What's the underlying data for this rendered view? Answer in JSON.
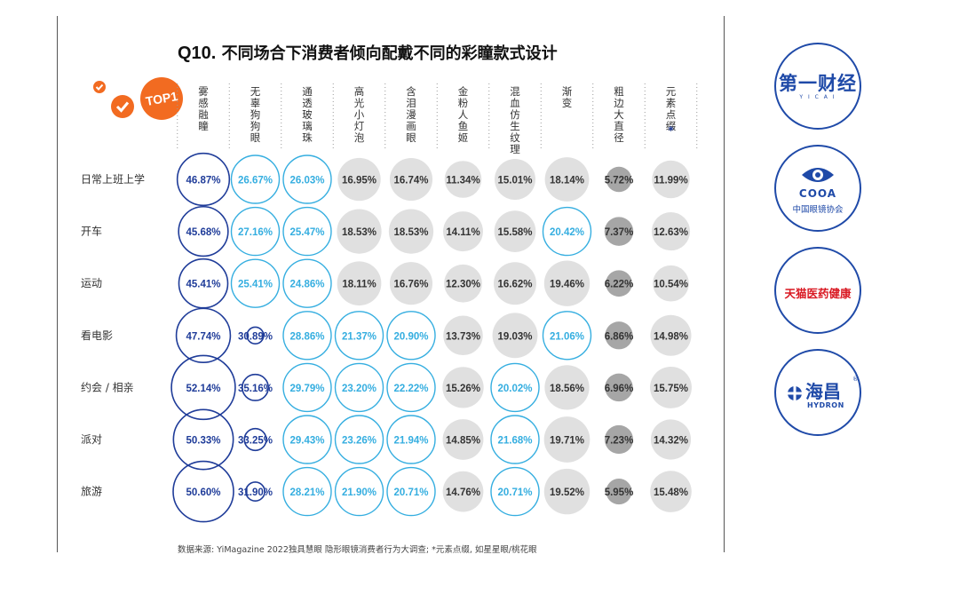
{
  "title": {
    "prefix": "Q10.",
    "text": "不同场合下消费者倾向配戴不同的彩瞳款式设计"
  },
  "badge": {
    "label": "TOP1"
  },
  "footer": {
    "text": "数据来源: YiMagazine 2022独具慧眼 隐形眼镜消费者行为大调查; *元素点缀, 如星星眼/桃花眼"
  },
  "logos": [
    {
      "name": "yicai",
      "main": "第一财经",
      "sub": "Y I C A I"
    },
    {
      "name": "cooa",
      "main": "COOA",
      "sub": "中国眼镜协会"
    },
    {
      "name": "tmall",
      "main": "天猫医药健康"
    },
    {
      "name": "hydron",
      "main": "海昌",
      "sub": "HYDRON",
      "mark": "®"
    }
  ],
  "colors": {
    "dark_blue": "#1f3c99",
    "light_blue": "#35aee0",
    "light_gray": "#e0e0e0",
    "dark_gray": "#a6a6a6",
    "orange": "#f26b21"
  },
  "chart_data": {
    "type": "table",
    "title": "Q10. 不同场合下消费者倾向配戴不同的彩瞳款式设计",
    "columns": [
      "雾感融瞳",
      "无辜狗狗眼",
      "通透玻璃珠",
      "高光小灯泡",
      "含泪漫画眼",
      "金粉人鱼姬",
      "混血仿生纹理",
      "渐变",
      "粗边大直径",
      "元素点缀*"
    ],
    "rows": [
      "日常上班上学",
      "开车",
      "运动",
      "看电影",
      "约会 / 相亲",
      "派对",
      "旅游"
    ],
    "values": [
      [
        46.87,
        26.67,
        26.03,
        16.95,
        16.74,
        11.34,
        15.01,
        18.14,
        5.72,
        11.99
      ],
      [
        45.68,
        27.16,
        25.47,
        18.53,
        18.53,
        14.11,
        15.58,
        20.42,
        7.37,
        12.63
      ],
      [
        45.41,
        25.41,
        24.86,
        18.11,
        16.76,
        12.3,
        16.62,
        19.46,
        6.22,
        10.54
      ],
      [
        47.74,
        30.89,
        28.86,
        21.37,
        20.9,
        13.73,
        19.03,
        21.06,
        6.86,
        14.98
      ],
      [
        52.14,
        35.16,
        29.79,
        23.2,
        22.22,
        15.26,
        20.02,
        18.56,
        6.96,
        15.75
      ],
      [
        50.33,
        33.25,
        29.43,
        23.26,
        21.94,
        14.85,
        21.68,
        19.71,
        7.23,
        14.32
      ],
      [
        50.6,
        31.9,
        28.21,
        21.9,
        20.71,
        14.76,
        20.71,
        19.52,
        5.95,
        15.48
      ]
    ],
    "styles": [
      [
        "dark",
        "light",
        "light",
        "gray",
        "gray",
        "gray",
        "gray",
        "gray",
        "darkgray",
        "gray"
      ],
      [
        "dark",
        "light",
        "light",
        "gray",
        "gray",
        "gray",
        "gray",
        "light",
        "darkgray",
        "gray"
      ],
      [
        "dark",
        "light",
        "light",
        "gray",
        "gray",
        "gray",
        "gray",
        "gray",
        "darkgray",
        "gray"
      ],
      [
        "dark",
        "dark",
        "light",
        "light",
        "light",
        "gray",
        "gray",
        "light",
        "darkgray",
        "gray"
      ],
      [
        "dark",
        "dark",
        "light",
        "light",
        "light",
        "gray",
        "light",
        "gray",
        "darkgray",
        "gray"
      ],
      [
        "dark",
        "dark",
        "light",
        "light",
        "light",
        "gray",
        "light",
        "gray",
        "darkgray",
        "gray"
      ],
      [
        "dark",
        "dark",
        "light",
        "light",
        "light",
        "gray",
        "light",
        "gray",
        "darkgray",
        "gray"
      ]
    ],
    "value_suffix": "%"
  }
}
